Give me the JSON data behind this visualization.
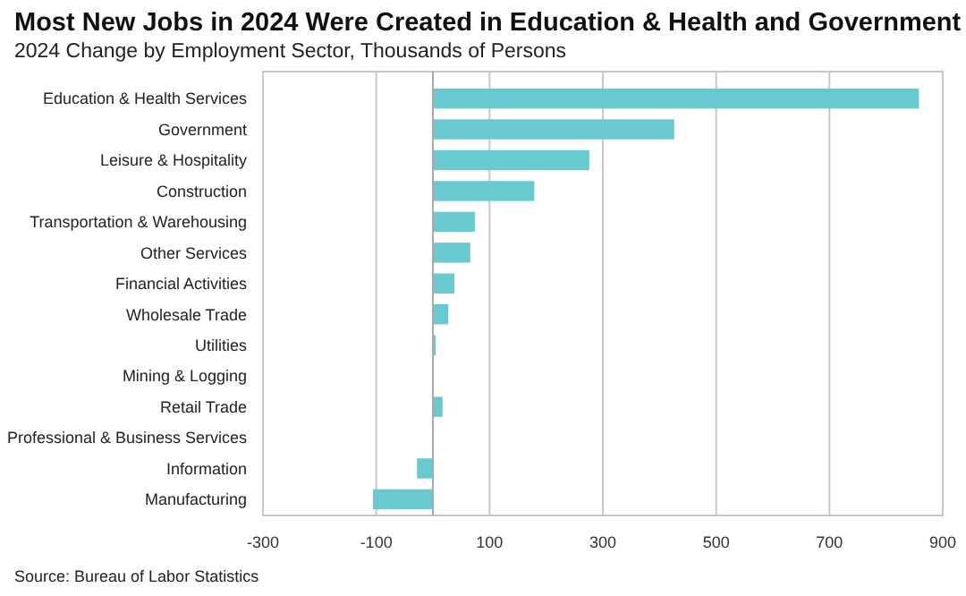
{
  "chart_data": {
    "type": "bar",
    "orientation": "horizontal",
    "title": "Most New Jobs in 2024 Were Created in Education & Health and Government",
    "subtitle": "2024 Change by Employment Sector, Thousands of Persons",
    "categories": [
      "Education & Health Services",
      "Government",
      "Leisure & Hospitality",
      "Construction",
      "Transportation & Warehousing",
      "Other Services",
      "Financial Activities",
      "Wholesale Trade",
      "Utilities",
      "Mining & Logging",
      "Retail Trade",
      "Professional & Business Services",
      "Information",
      "Manufacturing"
    ],
    "values": [
      858,
      426,
      276,
      179,
      74,
      66,
      38,
      27,
      5,
      0,
      17,
      0,
      -28,
      -106
    ],
    "color": "#68c9d0",
    "xlim": [
      -300,
      900
    ],
    "xticks": [
      -300,
      -100,
      100,
      300,
      500,
      700,
      900
    ],
    "grid": "x",
    "annotations": [
      "Source: Bureau of Labor Statistics"
    ]
  }
}
